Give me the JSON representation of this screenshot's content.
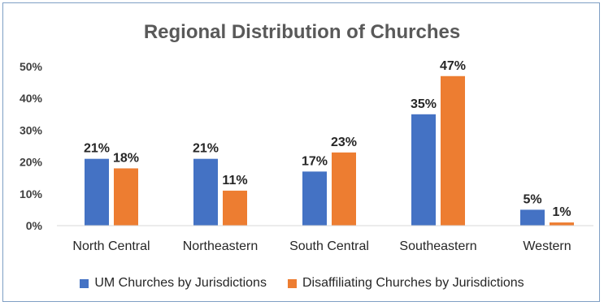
{
  "chart_data": {
    "type": "bar",
    "title": "Regional Distribution of Churches",
    "categories": [
      "North Central",
      "Northeastern",
      "South Central",
      "Southeastern",
      "Western"
    ],
    "series": [
      {
        "name": "UM Churches by Jurisdictions",
        "values": [
          21,
          21,
          17,
          35,
          5
        ],
        "labels": [
          "21%",
          "21%",
          "17%",
          "35%",
          "5%"
        ],
        "color": "#4472c4"
      },
      {
        "name": "Disaffiliating Churches by Jurisdictions",
        "values": [
          18,
          11,
          23,
          47,
          1
        ],
        "labels": [
          "18%",
          "11%",
          "23%",
          "47%",
          "1%"
        ],
        "color": "#ed7d31"
      }
    ],
    "yticks": [
      0,
      10,
      20,
      30,
      40,
      50
    ],
    "ytick_labels": [
      "0%",
      "10%",
      "20%",
      "30%",
      "40%",
      "50%"
    ],
    "ylim": [
      0,
      50
    ],
    "grid": false,
    "legend_position": "bottom",
    "xlabel": "",
    "ylabel": ""
  }
}
